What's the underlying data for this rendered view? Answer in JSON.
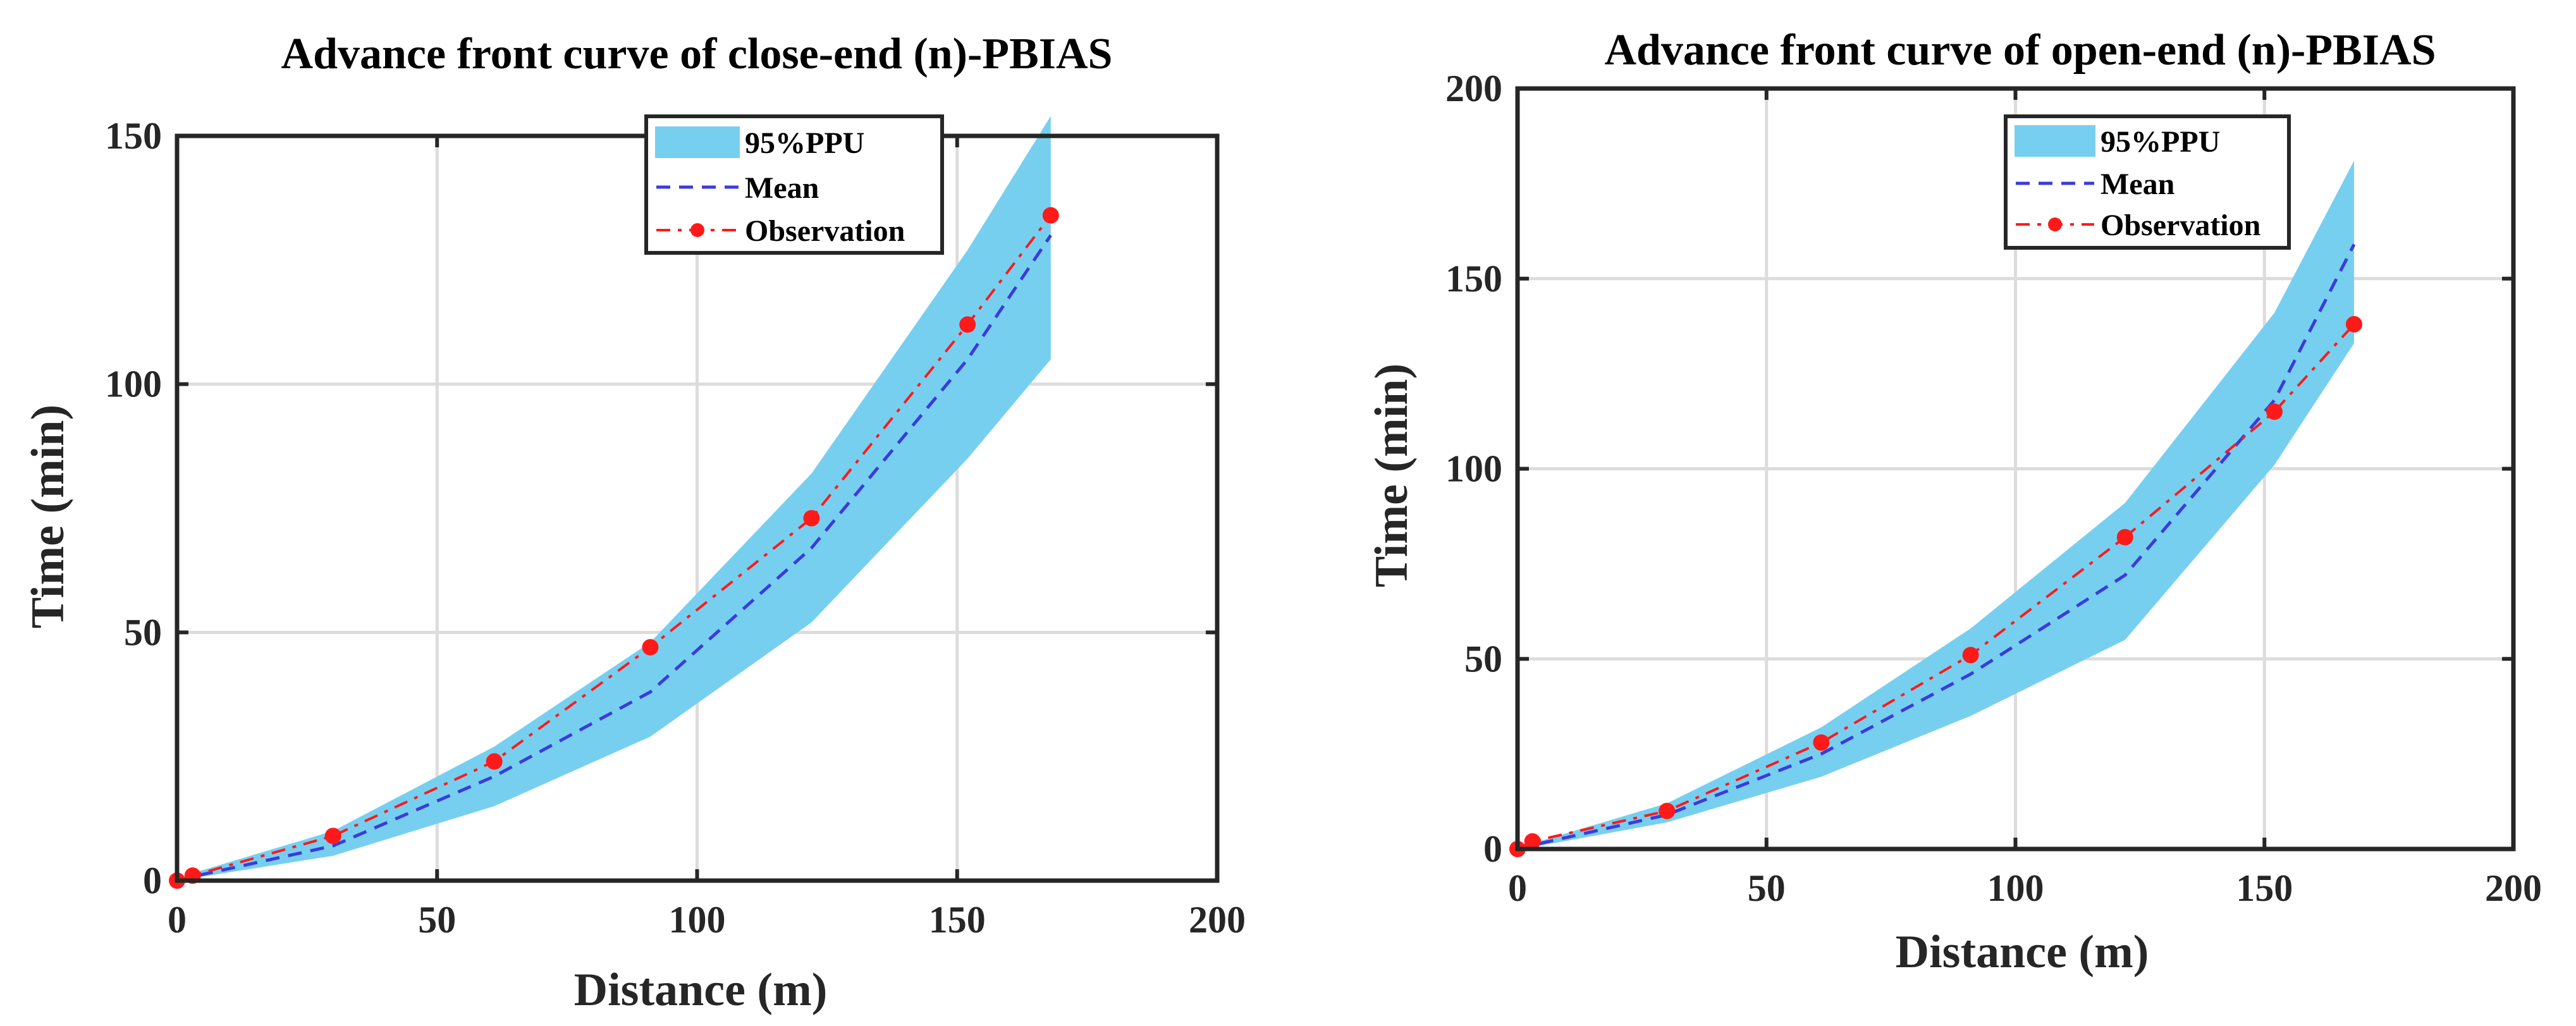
{
  "chart_data": [
    {
      "type": "line",
      "title": "Advance front curve of close-end (n)-PBIAS",
      "xlabel": "Distance (m)",
      "ylabel": "Time (min)",
      "xlim": [
        0,
        200
      ],
      "ylim": [
        0,
        150
      ],
      "xticks": [
        0,
        50,
        100,
        150,
        200
      ],
      "yticks": [
        0,
        50,
        100,
        150
      ],
      "grid": true,
      "legend_position": "top-center",
      "legend": [
        "95%PPU",
        "Mean",
        "Observation"
      ],
      "x": [
        0,
        3,
        30,
        61,
        91,
        122,
        152,
        168
      ],
      "band_lower": [
        0,
        0.5,
        5,
        15,
        29,
        52,
        85,
        105
      ],
      "band_upper": [
        0,
        1.5,
        10,
        27,
        48,
        82,
        127,
        154
      ],
      "series": [
        {
          "name": "Mean",
          "values": [
            0,
            0.8,
            7,
            21,
            38,
            67,
            105,
            130
          ]
        },
        {
          "name": "Observation",
          "values": [
            0,
            1,
            9,
            24,
            47,
            73,
            112,
            134
          ]
        }
      ]
    },
    {
      "type": "line",
      "title": "Advance front curve of open-end (n)-PBIAS",
      "xlabel": "Distance (m)",
      "ylabel": "Time (min)",
      "xlim": [
        0,
        200
      ],
      "ylim": [
        0,
        200
      ],
      "xticks": [
        0,
        50,
        100,
        150,
        200
      ],
      "yticks": [
        0,
        50,
        100,
        150,
        200
      ],
      "grid": true,
      "legend_position": "top-center",
      "legend": [
        "95%PPU",
        "Mean",
        "Observation"
      ],
      "x": [
        0,
        3,
        30,
        61,
        91,
        122,
        152,
        168
      ],
      "band_lower": [
        0,
        0.5,
        7,
        19,
        35,
        55,
        101,
        133
      ],
      "band_upper": [
        0,
        1.5,
        12,
        32,
        58,
        91,
        141,
        181
      ],
      "series": [
        {
          "name": "Mean",
          "values": [
            0,
            1,
            9,
            25,
            46,
            72,
            118,
            159
          ]
        },
        {
          "name": "Observation",
          "values": [
            0,
            2,
            10,
            28,
            51,
            82,
            115,
            138
          ]
        }
      ]
    }
  ],
  "colors": {
    "band": "#77cff0",
    "mean": "#3b3bdc",
    "observation": "#ff1a1a",
    "axes": "#262626",
    "grid": "#dcdcdc"
  }
}
